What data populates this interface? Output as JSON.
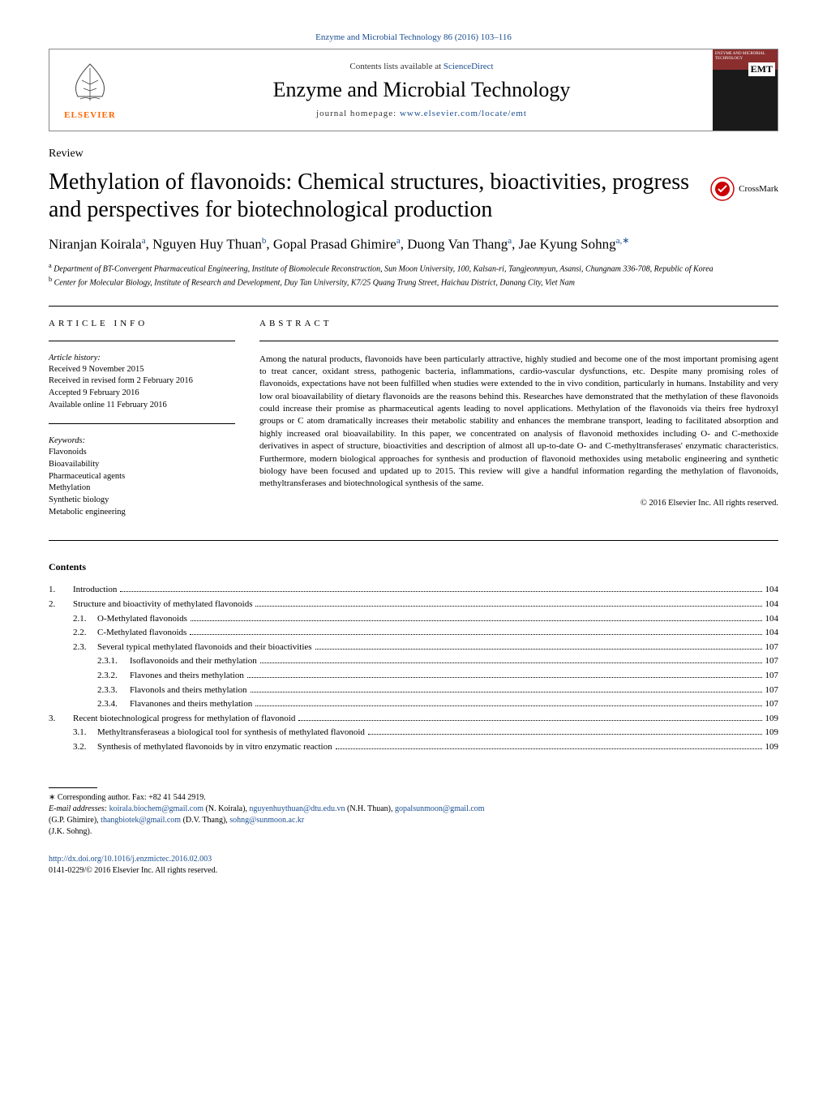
{
  "header": {
    "citation": "Enzyme and Microbial Technology 86 (2016) 103–116",
    "contents_available": "Contents lists available at",
    "sciencedirect": "ScienceDirect",
    "journal_title": "Enzyme and Microbial Technology",
    "homepage_label": "journal homepage:",
    "homepage_url": "www.elsevier.com/locate/emt",
    "elsevier": "ELSEVIER",
    "cover_text": "ENZYME AND MICROBIAL TECHNOLOGY",
    "cover_emt": "EMT"
  },
  "article": {
    "type": "Review",
    "title": "Methylation of flavonoids: Chemical structures, bioactivities, progress and perspectives for biotechnological production",
    "crossmark": "CrossMark"
  },
  "authors": {
    "list": "Niranjan Koirala",
    "a1_sup": "a",
    "a2": ", Nguyen Huy Thuan",
    "a2_sup": "b",
    "a3": ", Gopal Prasad Ghimire",
    "a3_sup": "a",
    "a4": ", Duong Van Thang",
    "a4_sup": "a",
    "a5": ", Jae Kyung Sohng",
    "a5_sup": "a,∗"
  },
  "affiliations": {
    "a_sup": "a",
    "a": " Department of BT-Convergent Pharmaceutical Engineering, Institute of Biomolecule Reconstruction, Sun Moon University, 100, Kalsan-ri, Tangjeonmyun, Asansi, Chungnam 336-708, Republic of Korea",
    "b_sup": "b",
    "b": " Center for Molecular Biology, Institute of Research and Development, Duy Tan University, K7/25 Quang Trung Street, Haichau District, Danang City, Viet Nam"
  },
  "info": {
    "heading": "ARTICLE INFO",
    "history_label": "Article history:",
    "received": "Received 9 November 2015",
    "revised": "Received in revised form 2 February 2016",
    "accepted": "Accepted 9 February 2016",
    "online": "Available online 11 February 2016",
    "keywords_label": "Keywords:",
    "keywords": [
      "Flavonoids",
      "Bioavailability",
      "Pharmaceutical agents",
      "Methylation",
      "Synthetic biology",
      "Metabolic engineering"
    ]
  },
  "abstract": {
    "heading": "ABSTRACT",
    "text": "Among the natural products, flavonoids have been particularly attractive, highly studied and become one of the most important promising agent to treat cancer, oxidant stress, pathogenic bacteria, inflammations, cardio-vascular dysfunctions, etc. Despite many promising roles of flavonoids, expectations have not been fulfilled when studies were extended to the in vivo condition, particularly in humans. Instability and very low oral bioavailability of dietary flavonoids are the reasons behind this. Researches have demonstrated that the methylation of these flavonoids could increase their promise as pharmaceutical agents leading to novel applications. Methylation of the flavonoids via theirs free hydroxyl groups or C atom dramatically increases their metabolic stability and enhances the membrane transport, leading to facilitated absorption and highly increased oral bioavailability. In this paper, we concentrated on analysis of flavonoid methoxides including O- and C-methoxide derivatives in aspect of structure, bioactivities and description of almost all up-to-date O- and C-methyltransferases' enzymatic characteristics. Furthermore, modern biological approaches for synthesis and production of flavonoid methoxides using metabolic engineering and synthetic biology have been focused and updated up to 2015. This review will give a handful information regarding the methylation of flavonoids, methyltransferases and biotechnological synthesis of the same.",
    "copyright": "© 2016 Elsevier Inc. All rights reserved."
  },
  "contents": {
    "heading": "Contents",
    "items": [
      {
        "level": 0,
        "num": "1.",
        "text": "Introduction",
        "page": "104"
      },
      {
        "level": 0,
        "num": "2.",
        "text": "Structure and bioactivity of methylated flavonoids",
        "page": "104"
      },
      {
        "level": 1,
        "num": "2.1.",
        "text": "O-Methylated flavonoids",
        "page": "104"
      },
      {
        "level": 1,
        "num": "2.2.",
        "text": "C-Methylated flavonoids",
        "page": "104"
      },
      {
        "level": 1,
        "num": "2.3.",
        "text": "Several typical methylated flavonoids and their bioactivities",
        "page": "107"
      },
      {
        "level": 2,
        "num": "2.3.1.",
        "text": "Isoflavonoids and their methylation",
        "page": "107"
      },
      {
        "level": 2,
        "num": "2.3.2.",
        "text": "Flavones and theirs methylation",
        "page": "107"
      },
      {
        "level": 2,
        "num": "2.3.3.",
        "text": "Flavonols and theirs methylation",
        "page": "107"
      },
      {
        "level": 2,
        "num": "2.3.4.",
        "text": "Flavanones and theirs methylation",
        "page": "107"
      },
      {
        "level": 0,
        "num": "3.",
        "text": "Recent biotechnological progress for methylation of flavonoid",
        "page": "109"
      },
      {
        "level": 1,
        "num": "3.1.",
        "text": "Methyltransferaseas a biological tool for synthesis of methylated flavonoid",
        "page": "109"
      },
      {
        "level": 1,
        "num": "3.2.",
        "text": "Synthesis of methylated flavonoids by in vitro enzymatic reaction",
        "page": "109"
      }
    ]
  },
  "footer": {
    "corr": "∗ Corresponding author. Fax: +82 41 544 2919.",
    "email_label": "E-mail addresses:",
    "e1": "koirala.biochem@gmail.com",
    "e1_name": " (N. Koirala), ",
    "e2": "nguyenhuythuan@dtu.edu.vn",
    "e2_name": " (N.H. Thuan), ",
    "e3": "gopalsunmoon@gmail.com",
    "e3_name": " (G.P. Ghimire), ",
    "e4": "thangbiotek@gmail.com",
    "e4_name": " (D.V. Thang), ",
    "e5": "sohng@sunmoon.ac.kr",
    "e5_name": " (J.K. Sohng).",
    "doi": "http://dx.doi.org/10.1016/j.enzmictec.2016.02.003",
    "issn": "0141-0229/© 2016 Elsevier Inc. All rights reserved."
  },
  "colors": {
    "link": "#1a4d8f",
    "elsevier_orange": "#ff6600",
    "cover_red": "#8b2e2e"
  }
}
